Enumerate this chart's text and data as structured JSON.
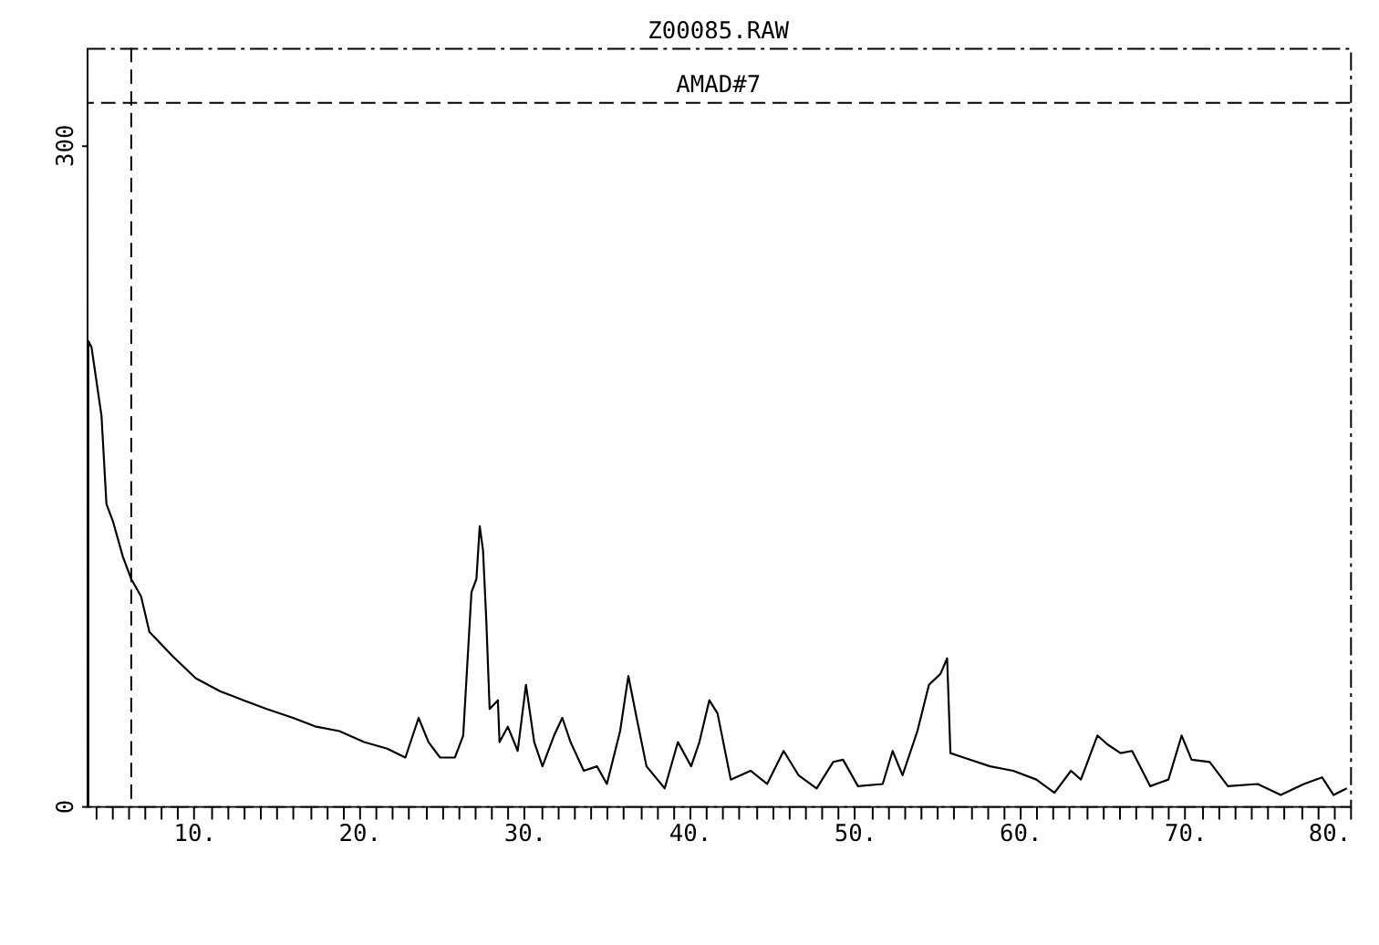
{
  "chart_data": {
    "type": "line",
    "title": "Z00085.RAW",
    "x": [
      3.6,
      3.6,
      3.8,
      4.4,
      4.7,
      5.1,
      5.7,
      6.2,
      6.8,
      7.3,
      8.7,
      10.1,
      11.6,
      13.0,
      14.4,
      16.0,
      17.4,
      18.8,
      20.3,
      21.7,
      22.8,
      23.6,
      24.2,
      24.9,
      25.8,
      26.3,
      26.8,
      27.1,
      27.3,
      27.5,
      27.7,
      27.9,
      28.4,
      28.5,
      29.0,
      29.6,
      30.1,
      30.6,
      31.1,
      31.8,
      32.3,
      32.8,
      33.6,
      34.4,
      35.0,
      35.8,
      36.3,
      36.8,
      37.4,
      38.5,
      39.3,
      40.1,
      40.6,
      41.2,
      41.7,
      42.5,
      43.7,
      44.7,
      45.7,
      46.6,
      47.7,
      48.7,
      49.3,
      50.2,
      51.7,
      52.3,
      52.9,
      53.8,
      54.5,
      55.2,
      55.6,
      55.8,
      56.6,
      58.2,
      59.6,
      61.0,
      62.1,
      63.1,
      63.7,
      64.7,
      65.3,
      66.1,
      66.8,
      67.9,
      69.0,
      69.8,
      70.4,
      71.5,
      72.6,
      74.4,
      75.8,
      77.2,
      78.3,
      79.0,
      79.8
    ],
    "series": [
      {
        "color": "#000000",
        "values": [
          0,
          211,
          208,
          177,
          137,
          129,
          113,
          103,
          95,
          79,
          68,
          58,
          52,
          48,
          44,
          40,
          36,
          34,
          29,
          26,
          22,
          40,
          29,
          22,
          22,
          32,
          97,
          103,
          127,
          116,
          84,
          44,
          48,
          29,
          36,
          25,
          55,
          29,
          18,
          32,
          40,
          29,
          16,
          18,
          10,
          34,
          59,
          40,
          18,
          8,
          29,
          18,
          29,
          48,
          42,
          12,
          16,
          10,
          25,
          14,
          8,
          20,
          21,
          9,
          10,
          25,
          14,
          34,
          55,
          60,
          67,
          24,
          22,
          18,
          16,
          12,
          6,
          16,
          12,
          32,
          28,
          24,
          25,
          9,
          12,
          32,
          21,
          20,
          9,
          10,
          5,
          10,
          13,
          5,
          8
        ]
      }
    ],
    "xlim": [
      3.5,
      80
    ],
    "xticks": [
      {
        "value": 4,
        "label": null
      },
      {
        "value": 5,
        "label": null
      },
      {
        "value": 6,
        "label": null
      },
      {
        "value": 7,
        "label": null
      },
      {
        "value": 8,
        "label": null
      },
      {
        "value": 9,
        "label": null
      },
      {
        "value": 10,
        "label": "10."
      },
      {
        "value": 11,
        "label": null
      },
      {
        "value": 12,
        "label": null
      },
      {
        "value": 13,
        "label": null
      },
      {
        "value": 14,
        "label": null
      },
      {
        "value": 15,
        "label": null
      },
      {
        "value": 16,
        "label": null
      },
      {
        "value": 17,
        "label": null
      },
      {
        "value": 18,
        "label": null
      },
      {
        "value": 19,
        "label": null
      },
      {
        "value": 20,
        "label": "20."
      },
      {
        "value": 21,
        "label": null
      },
      {
        "value": 22,
        "label": null
      },
      {
        "value": 23,
        "label": null
      },
      {
        "value": 24,
        "label": null
      },
      {
        "value": 25,
        "label": null
      },
      {
        "value": 26,
        "label": null
      },
      {
        "value": 27,
        "label": null
      },
      {
        "value": 28,
        "label": null
      },
      {
        "value": 29,
        "label": null
      },
      {
        "value": 30,
        "label": "30."
      },
      {
        "value": 31,
        "label": null
      },
      {
        "value": 32,
        "label": null
      },
      {
        "value": 33,
        "label": null
      },
      {
        "value": 34,
        "label": null
      },
      {
        "value": 35,
        "label": null
      },
      {
        "value": 36,
        "label": null
      },
      {
        "value": 37,
        "label": null
      },
      {
        "value": 38,
        "label": null
      },
      {
        "value": 39,
        "label": null
      },
      {
        "value": 40,
        "label": "40."
      },
      {
        "value": 41,
        "label": null
      },
      {
        "value": 42,
        "label": null
      },
      {
        "value": 43,
        "label": null
      },
      {
        "value": 44,
        "label": null
      },
      {
        "value": 45,
        "label": null
      },
      {
        "value": 46,
        "label": null
      },
      {
        "value": 47,
        "label": null
      },
      {
        "value": 48,
        "label": null
      },
      {
        "value": 49,
        "label": null
      },
      {
        "value": 50,
        "label": "50."
      },
      {
        "value": 51,
        "label": null
      },
      {
        "value": 52,
        "label": null
      },
      {
        "value": 53,
        "label": null
      },
      {
        "value": 54,
        "label": null
      },
      {
        "value": 55,
        "label": null
      },
      {
        "value": 56,
        "label": null
      },
      {
        "value": 57,
        "label": null
      },
      {
        "value": 58,
        "label": null
      },
      {
        "value": 59,
        "label": null
      },
      {
        "value": 60,
        "label": "60."
      },
      {
        "value": 61,
        "label": null
      },
      {
        "value": 62,
        "label": null
      },
      {
        "value": 63,
        "label": null
      },
      {
        "value": 64,
        "label": null
      },
      {
        "value": 65,
        "label": null
      },
      {
        "value": 66,
        "label": null
      },
      {
        "value": 67,
        "label": null
      },
      {
        "value": 68,
        "label": null
      },
      {
        "value": 69,
        "label": null
      },
      {
        "value": 70,
        "label": "70."
      },
      {
        "value": 71,
        "label": null
      },
      {
        "value": 72,
        "label": null
      },
      {
        "value": 73,
        "label": null
      },
      {
        "value": 74,
        "label": null
      },
      {
        "value": 75,
        "label": null
      },
      {
        "value": 76,
        "label": null
      },
      {
        "value": 77,
        "label": null
      },
      {
        "value": 78,
        "label": null
      },
      {
        "value": 79,
        "label": null
      },
      {
        "value": 80,
        "label": "80."
      }
    ],
    "ylim": [
      0,
      344
    ],
    "yticks": [
      0,
      300
    ],
    "ref_lines": [
      {
        "axis": "y",
        "value": 319,
        "label": "AMAD#7",
        "color": "#000000",
        "line_style": "dashed"
      },
      {
        "axis": "x",
        "value": 6.2,
        "color": "#000000",
        "line_style": "dashed"
      }
    ],
    "grid": false,
    "marker": "none",
    "line_style": "solid"
  }
}
